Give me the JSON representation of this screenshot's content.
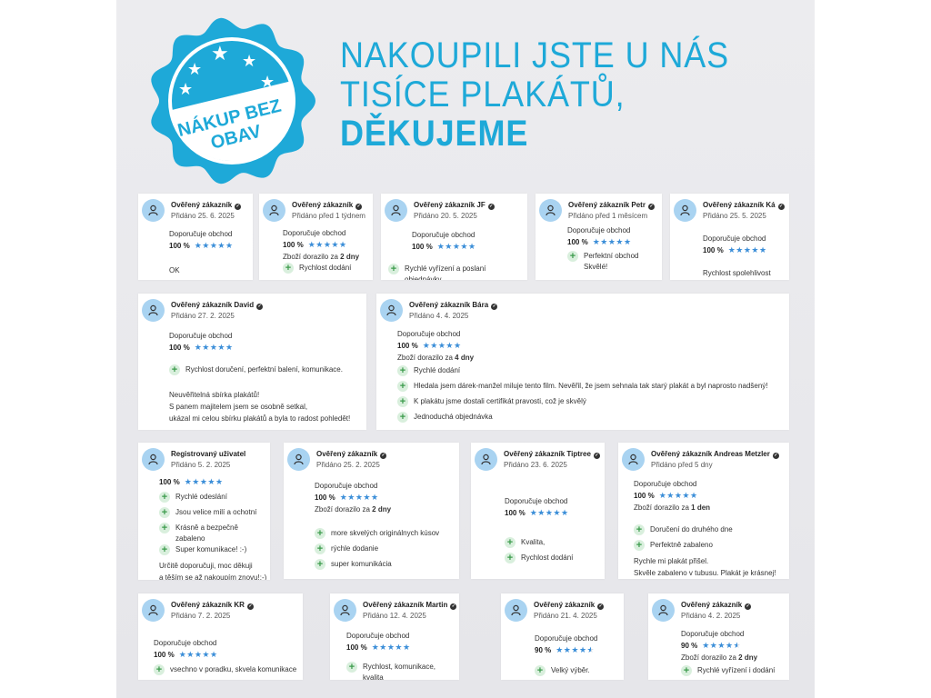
{
  "badge": {
    "text_line1": "NÁKUP BEZ",
    "text_line2": "OBAV",
    "color": "#1ea9d8"
  },
  "headline": {
    "line1": "NAKOUPILI JSTE U NÁS",
    "line2": "TISÍCE PLAKÁTŮ,",
    "line3": "DĚKUJEME",
    "color": "#1ea9d8"
  },
  "labels": {
    "recommend": "Doporučuje obchod",
    "delivery_prefix": "Zboží dorazilo za "
  },
  "colors": {
    "star": "#3b8ed8",
    "avatar": "#a9d3f1",
    "plus_bg": "#d9efdd",
    "plus": "#3c9b4c"
  },
  "reviews": [
    {
      "name": "Ověřený zákazník",
      "verified": true,
      "date": "Přidáno 25. 6. 2025",
      "recommend": true,
      "rating": "100 %",
      "stars": 5,
      "delivery": null,
      "pros": [],
      "text": [
        "OK"
      ]
    },
    {
      "name": "Ověřený zákazník",
      "verified": true,
      "date": "Přidáno před 1 týdnem",
      "recommend": true,
      "rating": "100 %",
      "stars": 5,
      "delivery": "2 dny",
      "pros": [
        "Rychlost dodání"
      ],
      "text": []
    },
    {
      "name": "Ověřený zákazník JF",
      "verified": true,
      "date": "Přidáno 20. 5. 2025",
      "recommend": true,
      "rating": "100 %",
      "stars": 5,
      "delivery": null,
      "pros": [
        "Rychlé vyřízení a poslaní objednávky"
      ],
      "text": []
    },
    {
      "name": "Ověřený zákazník Petr",
      "verified": true,
      "date": "Přidáno před 1 měsícem",
      "recommend": true,
      "rating": "100 %",
      "stars": 5,
      "delivery": null,
      "pros": [
        "Perfektní obchod\nSkvělé!"
      ],
      "text": []
    },
    {
      "name": "Ověřený zákazník Ká",
      "verified": true,
      "date": "Přidáno 25. 5. 2025",
      "recommend": true,
      "rating": "100 %",
      "stars": 5,
      "delivery": null,
      "pros": [],
      "text": [
        "Rychlost spolehlivost"
      ]
    },
    {
      "name": "Ověřený zákazník David",
      "verified": true,
      "date": "Přidáno 27. 2. 2025",
      "recommend": true,
      "rating": "100 %",
      "stars": 5,
      "delivery": null,
      "pros": [
        "Rychlost doručení, perfektní balení, komunikace."
      ],
      "text": [
        "Neuvěřitelná sbírka plakátů!",
        "S panem majitelem jsem se osobně setkal,",
        "ukázal mi celou sbírku plakátů a byla to radost pohledět!"
      ]
    },
    {
      "name": "Ověřený zákazník Bára",
      "verified": true,
      "date": "Přidáno 4. 4. 2025",
      "recommend": true,
      "rating": "100 %",
      "stars": 5,
      "delivery": "4 dny",
      "pros": [
        "Rychlé dodání",
        "Hledala jsem dárek-manžel miluje tento film. Nevěřil, že jsem sehnala tak starý plakát a byl naprosto nadšený!",
        "K plakátu jsme dostali certifikát pravosti, což je skvělý",
        "Jednoduchá objednávka"
      ],
      "text": []
    },
    {
      "name": "Registrovaný uživatel",
      "verified": false,
      "date": "Přidáno 5. 2. 2025",
      "recommend": false,
      "rating": "100 %",
      "stars": 5,
      "delivery": null,
      "pros": [
        "Rychlé odeslání",
        "Jsou velice milí a ochotní",
        "Krásně a bezpečně zabaleno",
        "Super komunikace! :-)"
      ],
      "text": [
        "Určitě doporučuji, moc děkuji",
        "a těším se až nakoupím znovu!:-)"
      ]
    },
    {
      "name": "Ověřený zákazník",
      "verified": true,
      "date": "Přidáno 25. 2. 2025",
      "recommend": true,
      "rating": "100 %",
      "stars": 5,
      "delivery": "2 dny",
      "pros": [
        "more skvelých originálnych kúsov",
        "rýchle dodanie",
        "super komunikácia"
      ],
      "text": []
    },
    {
      "name": "Ověřený zákazník Tiptree",
      "verified": true,
      "date": "Přidáno 23. 6. 2025",
      "recommend": true,
      "rating": "100 %",
      "stars": 5,
      "delivery": null,
      "pros": [
        "Kvalita,",
        "Rychlost dodání"
      ],
      "text": []
    },
    {
      "name": "Ověřený zákazník Andreas Metzler",
      "verified": true,
      "date": "Přidáno před 5 dny",
      "recommend": true,
      "rating": "100 %",
      "stars": 5,
      "delivery": "1 den",
      "pros": [
        "Doručení do druhého dne",
        "Perfektně zabaleno"
      ],
      "text": [
        "Rychle mi plakát přišel.",
        "Skvěle zabaleno v tubusu. Plakát je krásnej!"
      ]
    },
    {
      "name": "Ověřený zákazník KR",
      "verified": true,
      "date": "Přidáno 7. 2. 2025",
      "recommend": true,
      "rating": "100 %",
      "stars": 5,
      "delivery": null,
      "pros": [
        "vsechno v poradku, skvela komunikace"
      ],
      "text": []
    },
    {
      "name": "Ověřený zákazník Martin",
      "verified": true,
      "date": "Přidáno 12. 4. 2025",
      "recommend": true,
      "rating": "100 %",
      "stars": 5,
      "delivery": null,
      "pros": [
        "Rychlost, komunikace, kvalita"
      ],
      "text": []
    },
    {
      "name": "Ověřený zákazník",
      "verified": true,
      "date": "Přidáno 21. 4. 2025",
      "recommend": true,
      "rating": "90 %",
      "stars": 4.5,
      "delivery": null,
      "pros": [
        "Velký výběr."
      ],
      "text": []
    },
    {
      "name": "Ověřený zákazník",
      "verified": true,
      "date": "Přidáno 4. 2. 2025",
      "recommend": true,
      "rating": "90 %",
      "stars": 4.5,
      "delivery": "2 dny",
      "pros": [
        "Rychlé vyřízení i dodání"
      ],
      "text": []
    }
  ]
}
